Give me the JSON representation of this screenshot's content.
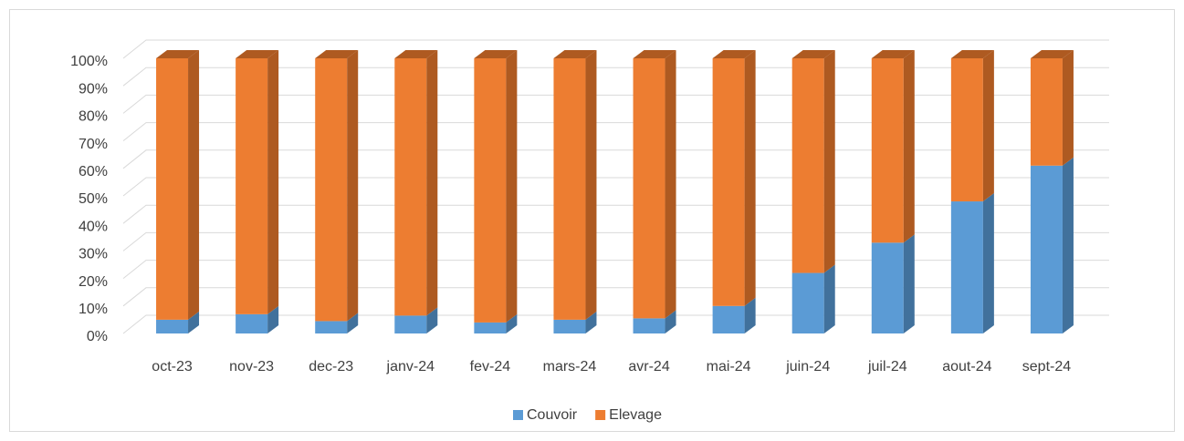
{
  "chart_data": {
    "type": "bar3d_stacked",
    "categories": [
      "oct-23",
      "nov-23",
      "dec-23",
      "janv-24",
      "fev-24",
      "mars-24",
      "avr-24",
      "mai-24",
      "juin-24",
      "juil-24",
      "aout-24",
      "sept-24"
    ],
    "series": [
      {
        "name": "Couvoir",
        "color": "#5b9bd5",
        "side_color": "#41719c",
        "values": [
          5,
          7,
          4.5,
          6.5,
          4,
          5,
          5.5,
          10,
          22,
          33,
          48,
          61
        ]
      },
      {
        "name": "Elevage",
        "color": "#ed7d31",
        "side_color": "#ae5a21",
        "values": [
          95,
          93,
          95.5,
          93.5,
          96,
          95,
          94.5,
          90,
          78,
          67,
          52,
          39
        ]
      }
    ],
    "ylim": [
      0,
      100
    ],
    "yticks": [
      {
        "value": 0,
        "label": "0%"
      },
      {
        "value": 10,
        "label": "10%"
      },
      {
        "value": 20,
        "label": "20%"
      },
      {
        "value": 30,
        "label": "30%"
      },
      {
        "value": 40,
        "label": "40%"
      },
      {
        "value": 50,
        "label": "50%"
      },
      {
        "value": 60,
        "label": "60%"
      },
      {
        "value": 70,
        "label": "70%"
      },
      {
        "value": 80,
        "label": "80%"
      },
      {
        "value": 90,
        "label": "90%"
      },
      {
        "value": 100,
        "label": "100%"
      }
    ],
    "grid": true,
    "legend": "bottom"
  }
}
